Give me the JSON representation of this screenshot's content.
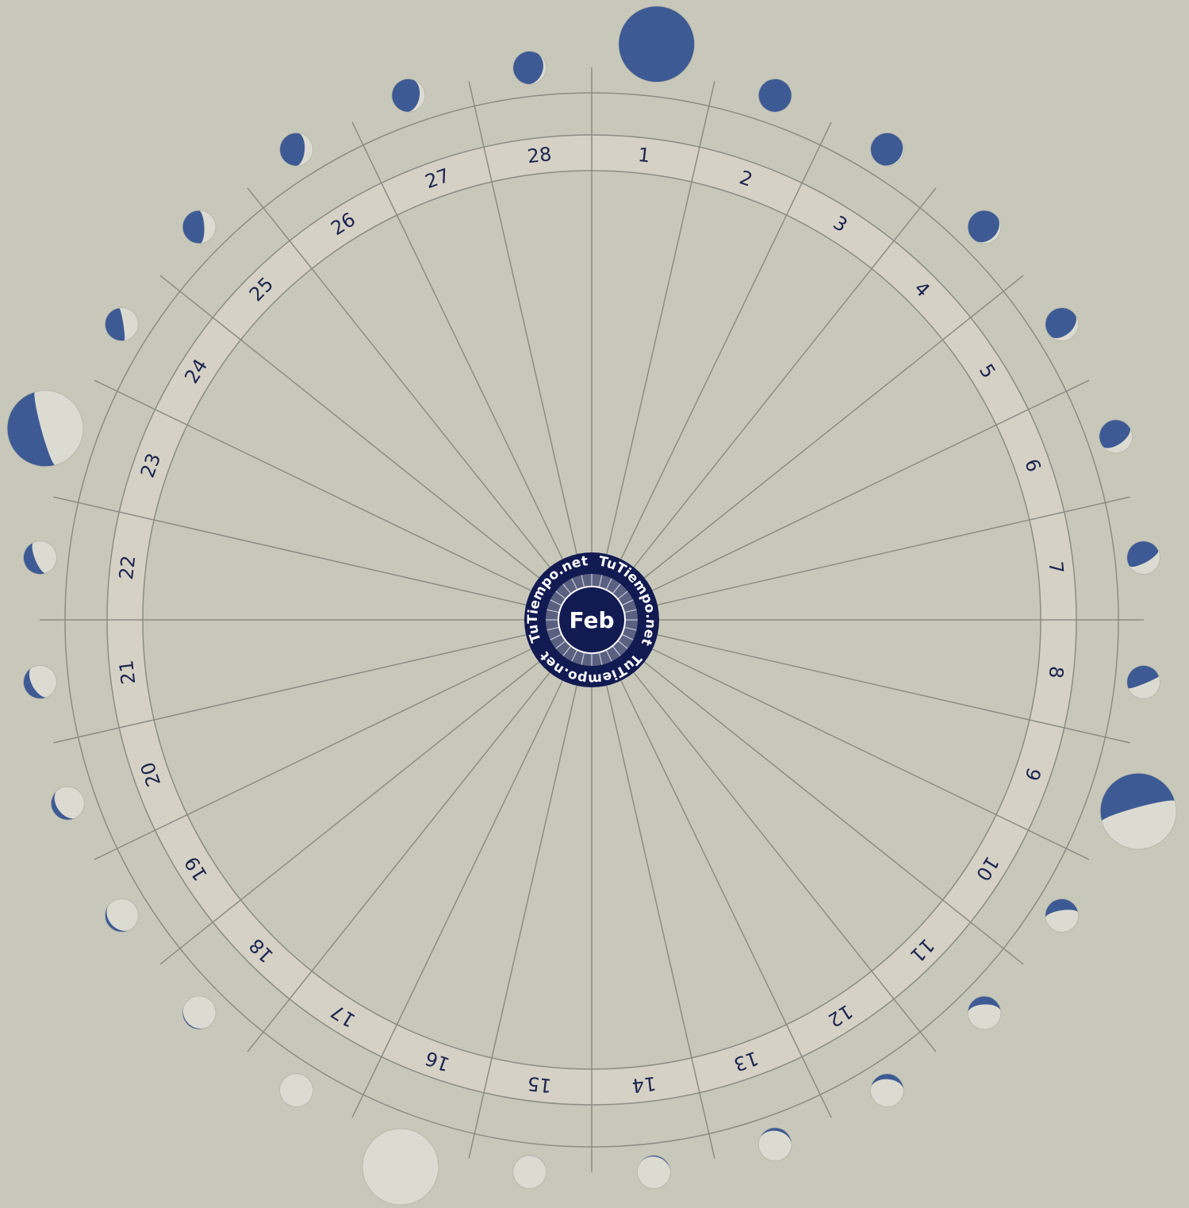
{
  "center": {
    "month": "Feb",
    "logo": "TuTiempo.net"
  },
  "days": [
    1,
    2,
    3,
    4,
    5,
    6,
    7,
    8,
    9,
    10,
    11,
    12,
    13,
    14,
    15,
    16,
    17,
    18,
    19,
    20,
    21,
    22,
    23,
    24,
    25,
    26,
    27,
    28
  ]
}
